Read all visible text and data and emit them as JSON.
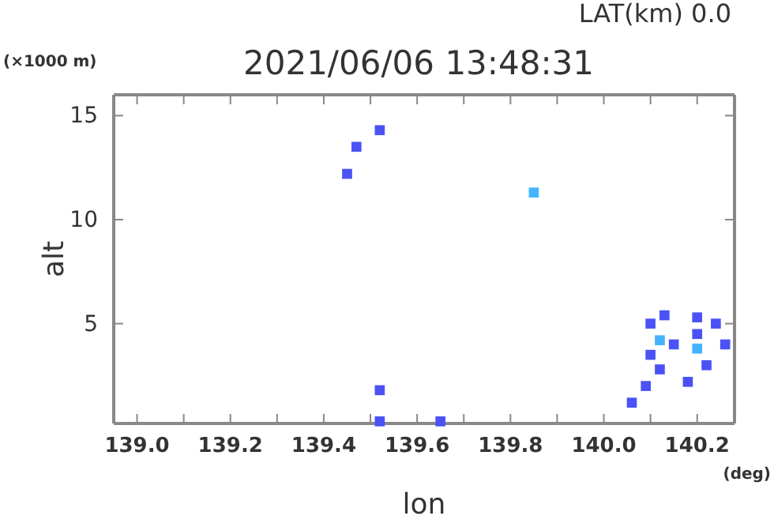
{
  "chart_data": {
    "type": "scatter",
    "title": "2021/06/06 13:48:31",
    "subtitle": "LAT(km) 0.0",
    "xlabel": "lon",
    "ylabel": "alt",
    "annotations": [
      "(×1000 m)",
      "(deg)"
    ],
    "xlim": [
      138.95,
      140.28
    ],
    "ylim": [
      0.2,
      16
    ],
    "xticks": [
      {
        "value": 139.0,
        "label": "139.0"
      },
      {
        "value": 139.1,
        "label": null
      },
      139.2,
      {
        "value": 139.3,
        "label": null
      },
      139.4,
      {
        "value": 139.5,
        "label": null
      },
      139.6,
      {
        "value": 139.7,
        "label": null
      },
      139.8,
      {
        "value": 139.9,
        "label": null
      },
      {
        "value": 140.0,
        "label": "140.0"
      },
      {
        "value": 140.1,
        "label": null
      },
      140.2
    ],
    "yticks": [
      5,
      10,
      15
    ],
    "grid": false,
    "marker": "square",
    "series": [
      {
        "color": "#4a52f5",
        "x": [
          139.45,
          139.47,
          139.52,
          139.52,
          139.52,
          139.65,
          140.06,
          140.09,
          140.12,
          140.15,
          140.1,
          140.13,
          140.2,
          140.24,
          140.26,
          140.22,
          140.18,
          140.1,
          140.2
        ],
        "values": [
          12.2,
          13.5,
          14.3,
          1.8,
          0.3,
          0.3,
          1.2,
          2.0,
          2.8,
          4.0,
          5.0,
          5.4,
          5.3,
          5.0,
          4.0,
          3.0,
          2.2,
          3.5,
          4.5
        ]
      },
      {
        "color": "#44b4ff",
        "x": [
          139.85,
          140.12,
          140.2
        ],
        "values": [
          11.3,
          4.2,
          3.8
        ]
      }
    ]
  }
}
